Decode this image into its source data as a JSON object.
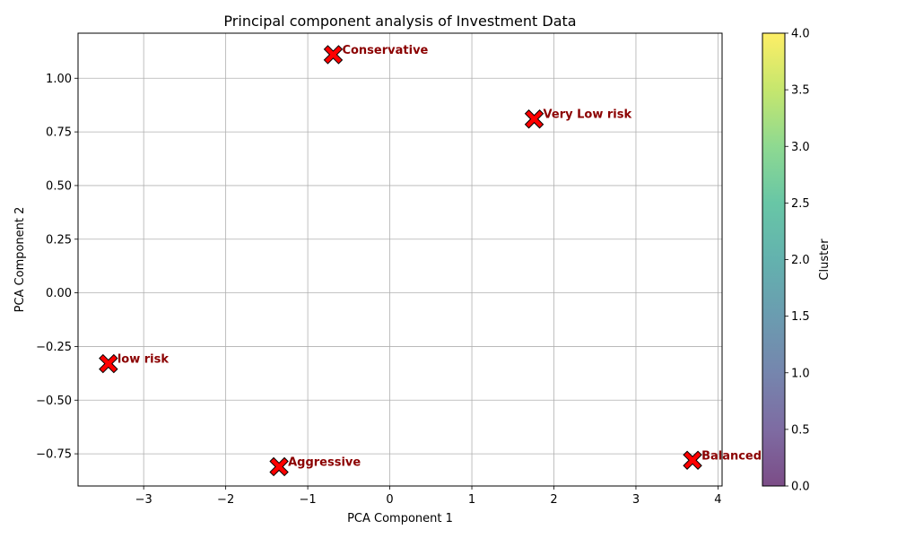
{
  "chart_data": {
    "type": "scatter",
    "title": "Principal component analysis of Investment Data",
    "xlabel": "PCA Component 1",
    "ylabel": "PCA Component 2",
    "xlim": [
      -3.8,
      4.05
    ],
    "ylim": [
      -0.9,
      1.21
    ],
    "xticks": [
      -3,
      -2,
      -1,
      0,
      1,
      2,
      3,
      4
    ],
    "xtick_labels": [
      "−3",
      "−2",
      "−1",
      "0",
      "1",
      "2",
      "3",
      "4"
    ],
    "yticks": [
      -0.75,
      -0.5,
      -0.25,
      0.0,
      0.25,
      0.5,
      0.75,
      1.0
    ],
    "ytick_labels": [
      "−0.75",
      "−0.50",
      "−0.25",
      "0.00",
      "0.25",
      "0.50",
      "0.75",
      "1.00"
    ],
    "grid": true,
    "marker": "X",
    "marker_color": "#ff0000",
    "label_color": "#8b0000",
    "points": [
      {
        "label": "Conservative",
        "x": -0.69,
        "y": 1.11
      },
      {
        "label": "Very Low risk",
        "x": 1.76,
        "y": 0.81
      },
      {
        "label": "low risk",
        "x": -3.43,
        "y": -0.33
      },
      {
        "label": "Aggressive",
        "x": -1.35,
        "y": -0.81
      },
      {
        "label": "Balanced",
        "x": 3.69,
        "y": -0.78
      }
    ],
    "colorbar": {
      "label": "Cluster",
      "min": 0,
      "max": 4,
      "ticks": [
        0.0,
        0.5,
        1.0,
        1.5,
        2.0,
        2.5,
        3.0,
        3.5,
        4.0
      ],
      "tick_labels": [
        "0.0",
        "0.5",
        "1.0",
        "1.5",
        "2.0",
        "2.5",
        "3.0",
        "3.5",
        "4.0"
      ],
      "colormap": "viridis",
      "alpha": 0.7
    }
  }
}
